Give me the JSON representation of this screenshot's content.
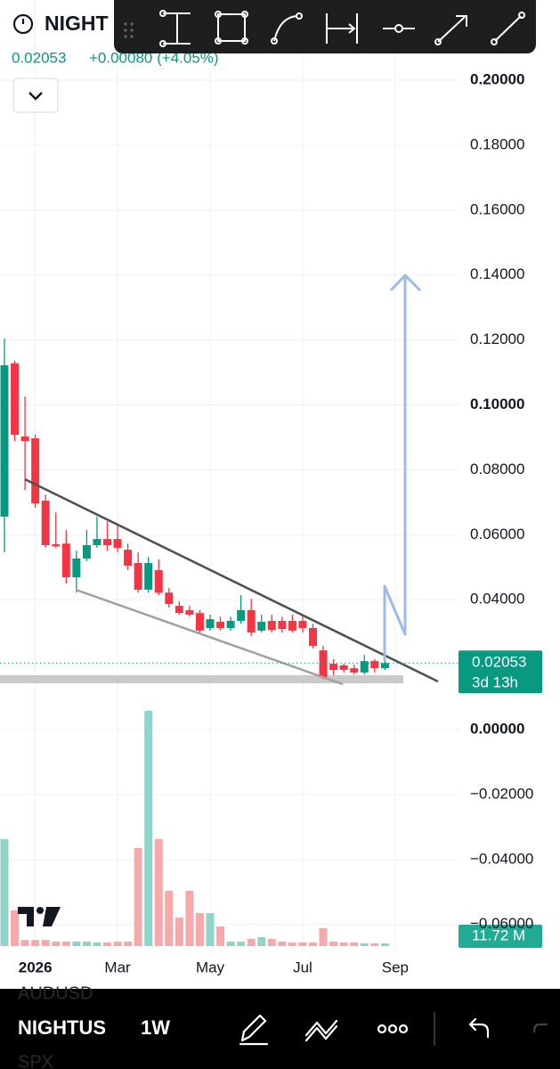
{
  "header": {
    "symbol": "NIGHT",
    "price": "0.02053",
    "change": "+0.00080 (+4.05%)"
  },
  "chart_data": {
    "type": "candlestick",
    "categories": [
      null,
      null,
      null,
      "2026",
      null,
      null,
      null,
      null,
      null,
      null,
      null,
      "Mar",
      null,
      null,
      null,
      null,
      null,
      null,
      null,
      null,
      "May",
      null,
      null,
      null,
      null,
      null,
      null,
      null,
      null,
      "Jul",
      null,
      null,
      null,
      null,
      null,
      null,
      null,
      null,
      "Sep"
    ],
    "open": [
      0.0656,
      0.1128,
      0.0903,
      0.0897,
      0.0705,
      0.0571,
      0.0573,
      0.0469,
      0.0527,
      0.0568,
      0.0587,
      0.0587,
      0.0554,
      0.0513,
      0.0431,
      0.0491,
      0.0422,
      0.0381,
      0.0368,
      0.0359,
      0.0313,
      0.0332,
      0.0313,
      0.0335,
      0.0368,
      0.0305,
      0.0335,
      0.0335,
      0.0335,
      0.0335,
      0.0313,
      0.0244,
      0.0203,
      0.0198,
      0.0189,
      0.0176,
      0.0211,
      0.0189,
      null
    ],
    "high": [
      0.1204,
      0.1136,
      0.1026,
      0.0908,
      0.0724,
      0.0669,
      0.0615,
      0.0551,
      0.0615,
      0.0656,
      0.0642,
      0.0634,
      0.0573,
      0.0546,
      0.0532,
      0.0524,
      0.0436,
      0.0395,
      0.0381,
      0.0368,
      0.0354,
      0.0348,
      0.0348,
      0.0414,
      0.0403,
      0.0354,
      0.0354,
      0.0348,
      0.0354,
      0.0354,
      0.0326,
      0.0258,
      0.0217,
      0.0203,
      0.02,
      0.023,
      0.0217,
      0.023,
      null
    ],
    "low": [
      0.0546,
      0.0889,
      0.0738,
      0.0683,
      0.056,
      0.056,
      0.045,
      0.0422,
      0.0519,
      0.056,
      0.0551,
      0.0546,
      0.0491,
      0.0422,
      0.0422,
      0.0414,
      0.0376,
      0.0354,
      0.0348,
      0.0294,
      0.0305,
      0.0305,
      0.0305,
      0.0326,
      0.0288,
      0.0299,
      0.0299,
      0.0299,
      0.0299,
      0.0299,
      0.025,
      0.0156,
      0.0167,
      0.0176,
      0.017,
      0.017,
      0.0176,
      0.0184,
      null
    ],
    "close": [
      0.1122,
      0.0908,
      0.0889,
      0.0697,
      0.0568,
      0.0565,
      0.0469,
      0.0527,
      0.0568,
      0.0587,
      0.0568,
      0.056,
      0.0505,
      0.0431,
      0.0513,
      0.0422,
      0.0387,
      0.0359,
      0.0354,
      0.0305,
      0.034,
      0.0313,
      0.0335,
      0.0368,
      0.0299,
      0.0332,
      0.0307,
      0.031,
      0.0305,
      0.0313,
      0.0258,
      0.0162,
      0.0184,
      0.0184,
      0.0176,
      0.0211,
      0.0189,
      0.02053,
      null
    ],
    "volume": [
      469,
      156,
      27,
      27,
      27,
      20,
      20,
      20,
      20,
      16,
      16,
      20,
      20,
      430,
      1031,
      469,
      242,
      125,
      242,
      145,
      145,
      86,
      20,
      20,
      31,
      39,
      31,
      20,
      16,
      16,
      16,
      78,
      20,
      16,
      16,
      12,
      12,
      11.72,
      null
    ],
    "up_color": "#089981",
    "down_color": "#f23645",
    "volume_up_color": "#8fd3c9",
    "volume_down_color": "#f6a9a8",
    "ylim": [
      -0.0683,
      0.2247
    ],
    "yticks": [
      {
        "value": 0.2,
        "label": "0.20000"
      },
      {
        "value": 0.18,
        "label": "0.18000"
      },
      {
        "value": 0.16,
        "label": "0.16000"
      },
      {
        "value": 0.14,
        "label": "0.14000"
      },
      {
        "value": 0.12,
        "label": "0.12000"
      },
      {
        "value": 0.1,
        "label": "0.10000"
      },
      {
        "value": 0.08,
        "label": "0.08000"
      },
      {
        "value": 0.06,
        "label": "0.06000"
      },
      {
        "value": 0.04,
        "label": "0.04000"
      },
      {
        "value": 0,
        "label": "0.00000"
      },
      {
        "value": -0.02,
        "label": "−0.02000"
      },
      {
        "value": -0.04,
        "label": "−0.04000"
      },
      {
        "value": -0.06,
        "label": "−0.06000"
      }
    ],
    "grid": true,
    "last_price_label": "0.02053",
    "countdown": "3d 13h",
    "volume_label": "11.72 M"
  },
  "footer": {
    "symbol": "NIGHTUS",
    "interval": "1W",
    "behind_above": "AUDUSD",
    "behind_below": "SPX"
  }
}
